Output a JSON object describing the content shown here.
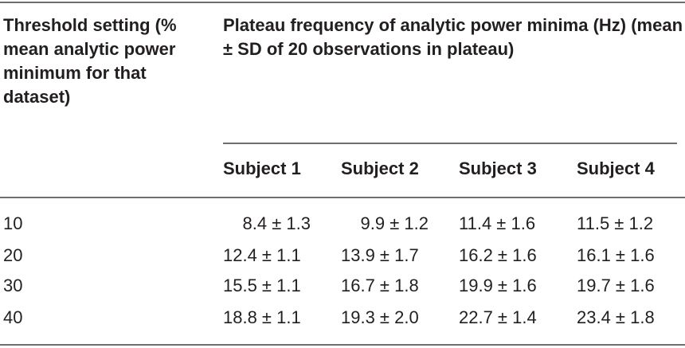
{
  "table": {
    "col1_header": "Threshold setting (% mean analytic power minimum for that dataset)",
    "col2_header": "Plateau frequency of analytic power minima (Hz) (mean ± SD of 20 observations in plateau)",
    "subjects": [
      "Subject 1",
      "Subject 2",
      "Subject 3",
      "Subject 4"
    ],
    "rows": [
      {
        "threshold": "10",
        "values": [
          "8.4 ± 1.3",
          "9.9 ± 1.2",
          "11.4 ± 1.6",
          "11.5 ± 1.2"
        ]
      },
      {
        "threshold": "20",
        "values": [
          "12.4 ± 1.1",
          "13.9 ± 1.7",
          "16.2 ± 1.6",
          "16.1 ± 1.6"
        ]
      },
      {
        "threshold": "30",
        "values": [
          "15.5 ± 1.1",
          "16.7 ± 1.8",
          "19.9 ± 1.6",
          "19.7 ± 1.6"
        ]
      },
      {
        "threshold": "40",
        "values": [
          "18.8 ± 1.1",
          "19.3 ± 2.0",
          "22.7 ± 1.4",
          "23.4 ± 1.8"
        ]
      }
    ]
  }
}
